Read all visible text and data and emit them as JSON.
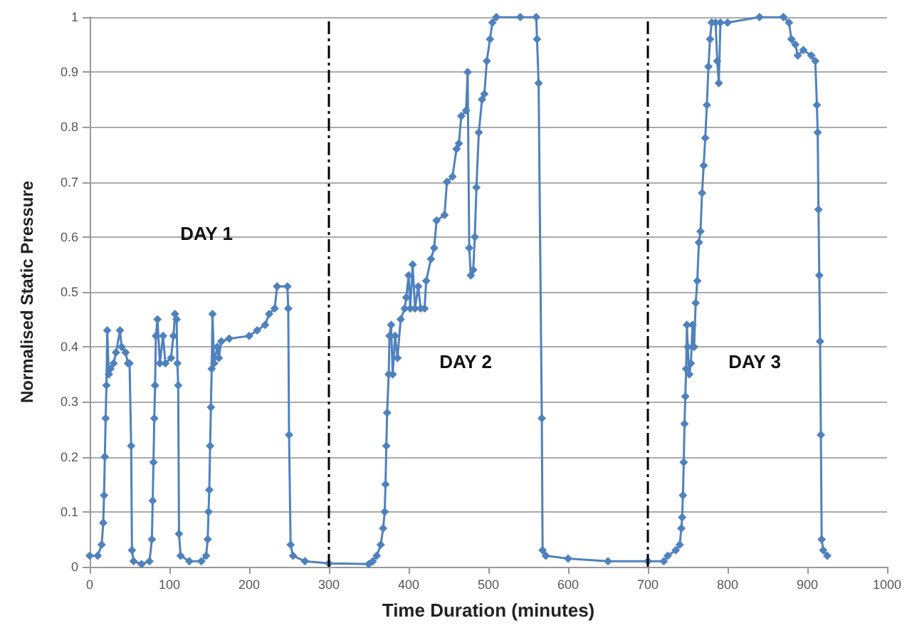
{
  "chart_data": {
    "type": "line",
    "xlabel": "Time Duration (minutes)",
    "ylabel": "Normalised Static Pressure",
    "xlim": [
      0,
      1000
    ],
    "xticks": [
      0,
      100,
      200,
      300,
      400,
      500,
      600,
      700,
      800,
      900,
      1000
    ],
    "ylim": [
      0,
      1
    ],
    "yticks": [
      0,
      0.1,
      0.2,
      0.3,
      0.4,
      0.5,
      0.6,
      0.7,
      0.8,
      0.9,
      1
    ],
    "grid": "y",
    "marker": "diamond",
    "line_style": "solid",
    "series": [
      {
        "color": "#4f81bd",
        "x": [
          0,
          10,
          15,
          17,
          18,
          19,
          20,
          21,
          22,
          24,
          26,
          30,
          33,
          38,
          40,
          45,
          48,
          50,
          52,
          53,
          55,
          65,
          75,
          78,
          79,
          80,
          81,
          82,
          83,
          85,
          88,
          92,
          95,
          102,
          105,
          107,
          109,
          110,
          111,
          112,
          114,
          125,
          140,
          146,
          148,
          149,
          150,
          151,
          152,
          153,
          154,
          156,
          160,
          162,
          165,
          175,
          200,
          210,
          220,
          225,
          232,
          235,
          248,
          249,
          250,
          252,
          255,
          270,
          300,
          350,
          355,
          360,
          365,
          368,
          370,
          371,
          372,
          373,
          375,
          376,
          378,
          380,
          383,
          386,
          390,
          395,
          397,
          400,
          402,
          405,
          408,
          412,
          415,
          420,
          422,
          428,
          432,
          435,
          445,
          448,
          455,
          460,
          463,
          466,
          472,
          474,
          476,
          478,
          481,
          483,
          485,
          488,
          492,
          495,
          498,
          502,
          505,
          510,
          540,
          560,
          561,
          563,
          567,
          568,
          572,
          600,
          650,
          700,
          720,
          725,
          735,
          740,
          742,
          743,
          744,
          745,
          746,
          747,
          748,
          749,
          750,
          752,
          754,
          756,
          758,
          760,
          762,
          764,
          766,
          768,
          770,
          772,
          774,
          776,
          778,
          780,
          785,
          787,
          789,
          791,
          800,
          840,
          870,
          877,
          880,
          885,
          888,
          895,
          905,
          910,
          912,
          913,
          914,
          915,
          916,
          917,
          918,
          920,
          925
        ],
        "values": [
          0.02,
          0.02,
          0.04,
          0.08,
          0.13,
          0.2,
          0.27,
          0.33,
          0.43,
          0.35,
          0.36,
          0.37,
          0.39,
          0.43,
          0.4,
          0.39,
          0.37,
          0.37,
          0.22,
          0.03,
          0.01,
          0.005,
          0.01,
          0.05,
          0.12,
          0.19,
          0.27,
          0.33,
          0.42,
          0.45,
          0.37,
          0.42,
          0.37,
          0.38,
          0.42,
          0.46,
          0.45,
          0.37,
          0.33,
          0.06,
          0.02,
          0.01,
          0.01,
          0.02,
          0.05,
          0.1,
          0.14,
          0.22,
          0.29,
          0.36,
          0.46,
          0.37,
          0.4,
          0.38,
          0.41,
          0.415,
          0.42,
          0.43,
          0.44,
          0.46,
          0.47,
          0.51,
          0.51,
          0.47,
          0.24,
          0.04,
          0.02,
          0.01,
          0.006,
          0.005,
          0.01,
          0.02,
          0.04,
          0.07,
          0.1,
          0.15,
          0.22,
          0.28,
          0.35,
          0.42,
          0.44,
          0.35,
          0.42,
          0.38,
          0.45,
          0.47,
          0.49,
          0.53,
          0.47,
          0.55,
          0.47,
          0.51,
          0.47,
          0.47,
          0.52,
          0.56,
          0.58,
          0.63,
          0.64,
          0.7,
          0.71,
          0.76,
          0.77,
          0.82,
          0.83,
          0.9,
          0.58,
          0.53,
          0.54,
          0.6,
          0.69,
          0.79,
          0.85,
          0.86,
          0.92,
          0.96,
          0.99,
          1,
          1,
          1,
          0.96,
          0.88,
          0.27,
          0.03,
          0.02,
          0.015,
          0.01,
          0.01,
          0.01,
          0.02,
          0.03,
          0.04,
          0.07,
          0.09,
          0.13,
          0.19,
          0.26,
          0.31,
          0.36,
          0.44,
          0.4,
          0.35,
          0.37,
          0.44,
          0.4,
          0.48,
          0.52,
          0.59,
          0.61,
          0.68,
          0.73,
          0.78,
          0.84,
          0.91,
          0.96,
          0.99,
          0.99,
          0.92,
          0.88,
          0.99,
          0.99,
          1,
          1,
          0.99,
          0.96,
          0.95,
          0.93,
          0.94,
          0.93,
          0.92,
          0.84,
          0.79,
          0.65,
          0.53,
          0.41,
          0.24,
          0.05,
          0.03,
          0.02
        ]
      }
    ],
    "ref_lines": [
      {
        "axis": "x",
        "value": 300,
        "color": "#000000",
        "line_style": "dashed"
      },
      {
        "axis": "x",
        "value": 700,
        "color": "#000000",
        "line_style": "dashed"
      }
    ],
    "annotations": [
      "DAY 1",
      "DAY 2",
      "DAY 3"
    ]
  }
}
